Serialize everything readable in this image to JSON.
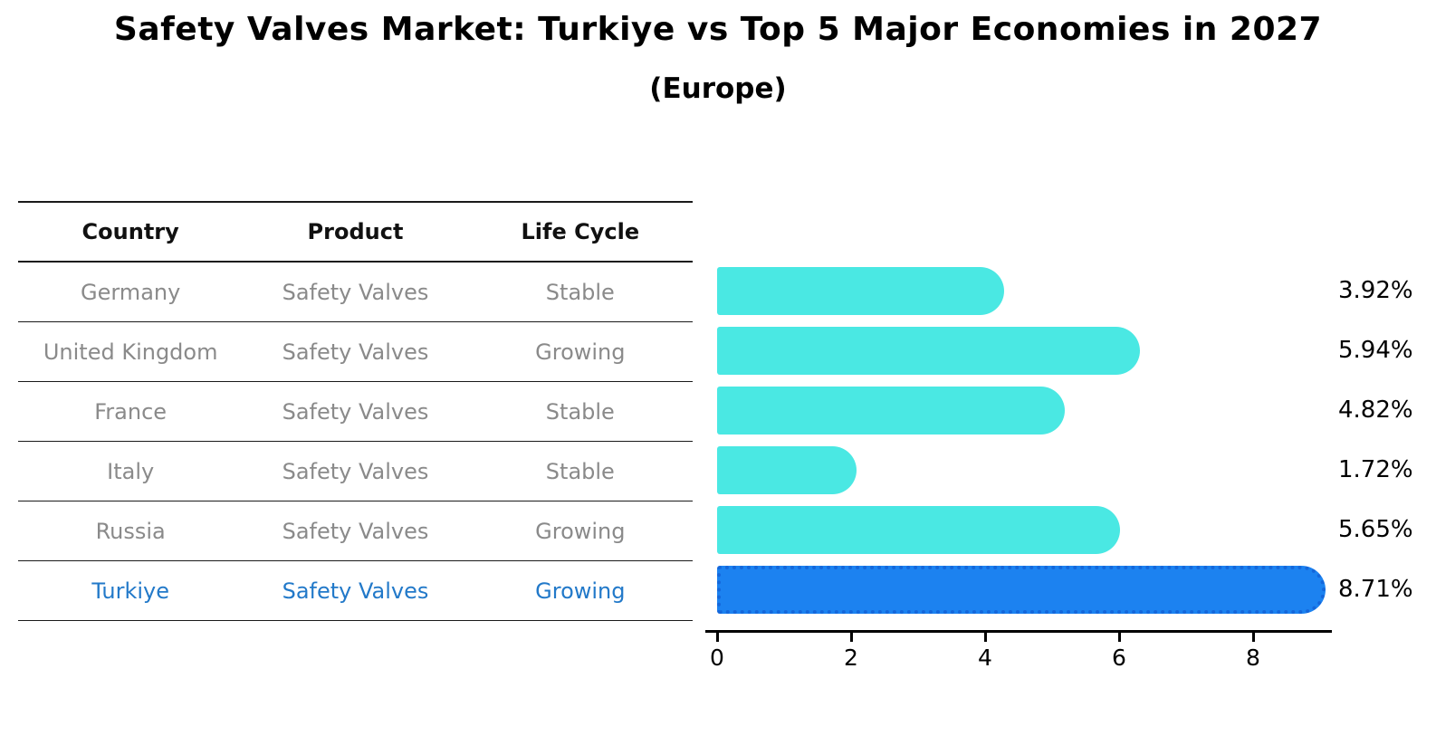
{
  "title": "Safety Valves Market: Turkiye vs Top 5 Major Economies in 2027",
  "subtitle": "(Europe)",
  "table": {
    "headers": [
      "Country",
      "Product",
      "Life Cycle"
    ],
    "rows": [
      {
        "country": "Germany",
        "product": "Safety Valves",
        "life_cycle": "Stable",
        "highlight": false
      },
      {
        "country": "United Kingdom",
        "product": "Safety Valves",
        "life_cycle": "Growing",
        "highlight": false
      },
      {
        "country": "France",
        "product": "Safety Valves",
        "life_cycle": "Stable",
        "highlight": false
      },
      {
        "country": "Italy",
        "product": "Safety Valves",
        "life_cycle": "Stable",
        "highlight": false
      },
      {
        "country": "Russia",
        "product": "Safety Valves",
        "life_cycle": "Growing",
        "highlight": false
      },
      {
        "country": "Turkiye",
        "product": "Safety Valves",
        "life_cycle": "Growing",
        "highlight": true
      }
    ]
  },
  "chart_data": {
    "type": "bar",
    "orientation": "horizontal",
    "title": "Safety Valves Market: Turkiye vs Top 5 Major Economies in 2027",
    "subtitle": "(Europe)",
    "categories": [
      "Germany",
      "United Kingdom",
      "France",
      "Italy",
      "Russia",
      "Turkiye"
    ],
    "values": [
      3.92,
      5.94,
      4.82,
      1.72,
      5.65,
      8.71
    ],
    "value_labels": [
      "3.92%",
      "5.94%",
      "4.82%",
      "1.72%",
      "5.65%",
      "8.71%"
    ],
    "xticks": [
      0,
      2,
      4,
      6,
      8
    ],
    "xlim": [
      0,
      9.16
    ],
    "grid": false,
    "legend": false,
    "bar_color": "#4AE8E3",
    "highlight_bar_color": "#1C82F0",
    "highlight_bar_edge_color": "#1467DB",
    "highlight_index": 5
  },
  "colors": {
    "background": "#ffffff",
    "table_header_text": "#111111",
    "table_row_text": "#8a8a8a",
    "highlight_row_text": "#2279C9",
    "axis_text": "#000000",
    "rule_line": "#1a1a1a"
  }
}
